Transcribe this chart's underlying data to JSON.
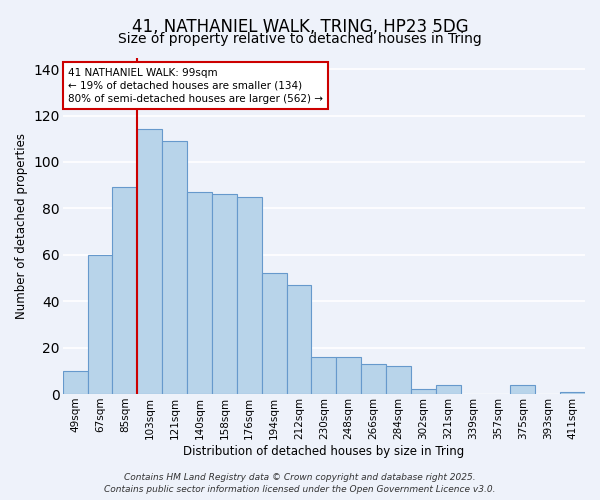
{
  "title": "41, NATHANIEL WALK, TRING, HP23 5DG",
  "subtitle": "Size of property relative to detached houses in Tring",
  "xlabel": "Distribution of detached houses by size in Tring",
  "ylabel": "Number of detached properties",
  "bar_labels": [
    "49sqm",
    "67sqm",
    "85sqm",
    "103sqm",
    "121sqm",
    "140sqm",
    "158sqm",
    "176sqm",
    "194sqm",
    "212sqm",
    "230sqm",
    "248sqm",
    "266sqm",
    "284sqm",
    "302sqm",
    "321sqm",
    "339sqm",
    "357sqm",
    "375sqm",
    "393sqm",
    "411sqm"
  ],
  "bar_heights": [
    10,
    60,
    89,
    114,
    109,
    87,
    86,
    85,
    52,
    47,
    16,
    16,
    13,
    12,
    2,
    4,
    0,
    0,
    4,
    0,
    1
  ],
  "bar_color": "#b8d4ea",
  "bar_edgecolor": "#6699cc",
  "vline_x": 2.5,
  "vline_color": "#cc0000",
  "annotation_title": "41 NATHANIEL WALK: 99sqm",
  "annotation_line1": "← 19% of detached houses are smaller (134)",
  "annotation_line2": "80% of semi-detached houses are larger (562) →",
  "annotation_box_facecolor": "#ffffff",
  "annotation_box_edgecolor": "#cc0000",
  "ylim": [
    0,
    145
  ],
  "yticks": [
    0,
    20,
    40,
    60,
    80,
    100,
    120,
    140
  ],
  "footer1": "Contains HM Land Registry data © Crown copyright and database right 2025.",
  "footer2": "Contains public sector information licensed under the Open Government Licence v3.0.",
  "background_color": "#eef2fa",
  "grid_color": "#ffffff",
  "title_fontsize": 12,
  "subtitle_fontsize": 10,
  "tick_fontsize": 7.5,
  "ylabel_fontsize": 8.5,
  "xlabel_fontsize": 8.5,
  "footer_fontsize": 6.5
}
